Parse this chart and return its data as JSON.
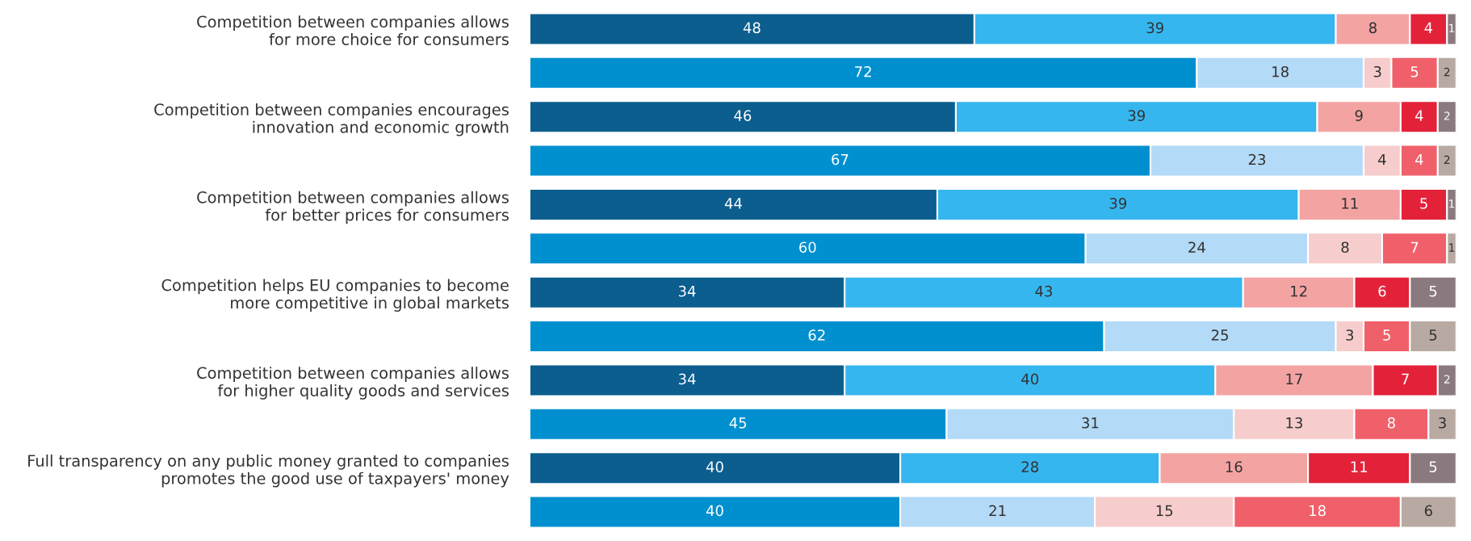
{
  "chart_data": {
    "type": "bar",
    "orientation": "horizontal",
    "stacked": true,
    "data_labels": true,
    "categories": [
      "Competition between companies allows\nfor more choice for consumers",
      null,
      "Competition between companies encourages\ninnovation and economic growth",
      null,
      "Competition between companies allows\nfor better prices for consumers",
      null,
      "Competition helps EU companies to become\nmore competitive in global markets",
      null,
      "Competition between companies allows\nfor higher quality goods and services",
      null,
      "Full transparency on any public money granted to companies\npromotes the good use of taxpayers' money",
      null
    ],
    "series": [
      {
        "colors": [
          "#0b5e8e",
          "#0090cf",
          "#0b5e8e",
          "#0090cf",
          "#0b5e8e",
          "#0090cf",
          "#0b5e8e",
          "#0090cf",
          "#0b5e8e",
          "#0090cf",
          "#0b5e8e",
          "#0090cf"
        ],
        "values": [
          48,
          72,
          46,
          67,
          44,
          60,
          34,
          62,
          34,
          45,
          40,
          40
        ]
      },
      {
        "colors": [
          "#36b6ef",
          "#b3daf7",
          "#36b6ef",
          "#b3daf7",
          "#36b6ef",
          "#b3daf7",
          "#36b6ef",
          "#b3daf7",
          "#36b6ef",
          "#b3daf7",
          "#36b6ef",
          "#b3daf7"
        ],
        "values": [
          39,
          18,
          39,
          23,
          39,
          24,
          43,
          25,
          40,
          31,
          28,
          21
        ]
      },
      {
        "colors": [
          "#f4a3a3",
          "#f6cdcc",
          "#f4a3a3",
          "#f6cdcc",
          "#f4a3a3",
          "#f6cdcc",
          "#f4a3a3",
          "#f6cdcc",
          "#f4a3a3",
          "#f6cdcc",
          "#f4a3a3",
          "#f6cdcc"
        ],
        "values": [
          8,
          3,
          9,
          4,
          11,
          8,
          12,
          3,
          17,
          13,
          16,
          15
        ]
      },
      {
        "colors": [
          "#e3223a",
          "#f0606a",
          "#e3223a",
          "#f0606a",
          "#e3223a",
          "#f0606a",
          "#e3223a",
          "#f0606a",
          "#e3223a",
          "#f0606a",
          "#e3223a",
          "#f0606a"
        ],
        "values": [
          4,
          5,
          4,
          4,
          5,
          7,
          6,
          5,
          7,
          8,
          11,
          18
        ]
      },
      {
        "colors": [
          "#8a7a7f",
          "#b8aaa2",
          "#8a7a7f",
          "#b8aaa2",
          "#8a7a7f",
          "#b8aaa2",
          "#8a7a7f",
          "#b8aaa2",
          "#8a7a7f",
          "#b8aaa2",
          "#8a7a7f",
          "#b8aaa2"
        ],
        "values": [
          1,
          2,
          2,
          2,
          1,
          1,
          5,
          5,
          2,
          3,
          5,
          6
        ]
      }
    ]
  }
}
